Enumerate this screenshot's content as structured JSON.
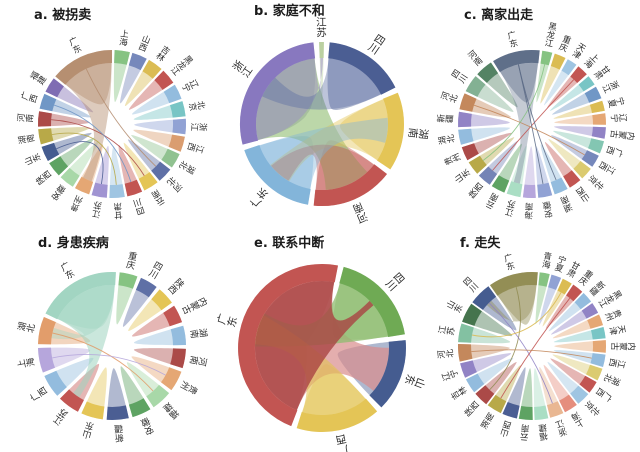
{
  "page": {
    "background": "#ffffff"
  },
  "chart_data": [
    {
      "id": "a",
      "type": "chord",
      "title": "a. 被拐卖",
      "provinces": [
        {
          "name": "上海",
          "color": "#82c17e",
          "value": 12
        },
        {
          "name": "山西",
          "color": "#7284b8",
          "value": 12
        },
        {
          "name": "吉林",
          "color": "#d9b94e",
          "value": 12
        },
        {
          "name": "黑龙江",
          "color": "#c0504d",
          "value": 12
        },
        {
          "name": "辽宁",
          "color": "#8fb9dc",
          "value": 12
        },
        {
          "name": "北京",
          "color": "#74c3c3",
          "value": 12
        },
        {
          "name": "浙江",
          "color": "#8d9fd3",
          "value": 12
        },
        {
          "name": "江西",
          "color": "#d89a6b",
          "value": 12
        },
        {
          "name": "湖北",
          "color": "#8cc08c",
          "value": 12
        },
        {
          "name": "河北",
          "color": "#5a6ba3",
          "value": 12
        },
        {
          "name": "云南",
          "color": "#e3c351",
          "value": 12
        },
        {
          "name": "四川",
          "color": "#c0504d",
          "value": 12
        },
        {
          "name": "甘肃",
          "color": "#9cc3e0",
          "value": 12
        },
        {
          "name": "江苏",
          "color": "#9d90d1",
          "value": 12
        },
        {
          "name": "贵州",
          "color": "#e4a470",
          "value": 12
        },
        {
          "name": "安徽",
          "color": "#a5d6a5",
          "value": 12
        },
        {
          "name": "陕西",
          "color": "#58a05e",
          "value": 12
        },
        {
          "name": "山东",
          "color": "#3f568c",
          "value": 12
        },
        {
          "name": "湖南",
          "color": "#b5a642",
          "value": 12
        },
        {
          "name": "河南",
          "color": "#a94442",
          "value": 12
        },
        {
          "name": "广西",
          "color": "#6b93c4",
          "value": 12
        },
        {
          "name": "福建",
          "color": "#7b68b0",
          "value": 12
        },
        {
          "name": "广东",
          "color": "#b38b6d",
          "value": 50
        }
      ],
      "ribbons": [
        {
          "from": "广东",
          "to": "贵州",
          "color": "#b38b6d",
          "opacity": 0.45,
          "width": 9
        }
      ],
      "chords": [
        {
          "from": "广东",
          "to": "河北",
          "color": "#b38b6d"
        },
        {
          "from": "河南",
          "to": "云南",
          "color": "#a94442"
        },
        {
          "from": "湖南",
          "to": "甘肃",
          "color": "#b5a642"
        },
        {
          "from": "山东",
          "to": "江苏",
          "color": "#46598f"
        },
        {
          "from": "广西",
          "to": "四川",
          "color": "#6b93c4"
        }
      ]
    },
    {
      "id": "b",
      "type": "chord",
      "title": "b. 家庭不和",
      "provinces": [
        {
          "name": "江苏",
          "color": "#b8cf9e",
          "value": 3
        },
        {
          "name": "四川",
          "color": "#46598f",
          "value": 52
        },
        {
          "name": "湖南",
          "color": "#e3c351",
          "value": 50
        },
        {
          "name": "河南",
          "color": "#c0504d",
          "value": 52
        },
        {
          "name": "广东",
          "color": "#7fb2d8",
          "value": 55
        },
        {
          "name": "浙江",
          "color": "#8474bd",
          "value": 88
        }
      ],
      "ribbons": [
        {
          "from": "浙江",
          "to": "河南",
          "color": "#8fbc6f",
          "opacity": 0.6,
          "width": 40
        },
        {
          "from": "浙江",
          "to": "江苏",
          "color": "#9b8ec4",
          "opacity": 0.5,
          "width": 3
        },
        {
          "from": "四川",
          "to": "浙江",
          "color": "#5a6ba3",
          "opacity": 0.4,
          "width": 20
        },
        {
          "from": "湖南",
          "to": "广东",
          "color": "#e3c351",
          "opacity": 0.42,
          "width": 22
        },
        {
          "from": "河南",
          "to": "广东",
          "color": "#c0504d",
          "opacity": 0.42,
          "width": 20
        },
        {
          "from": "广东",
          "to": "湖南",
          "color": "#7fb2d8",
          "opacity": 0.42,
          "width": 22
        }
      ],
      "chords": []
    },
    {
      "id": "c",
      "type": "chord",
      "title": "c. 离家出走",
      "provinces": [
        {
          "name": "黑龙江",
          "color": "#82c17e",
          "value": 8
        },
        {
          "name": "重庆",
          "color": "#d9b94e",
          "value": 9
        },
        {
          "name": "天津",
          "color": "#9cc3e0",
          "value": 8
        },
        {
          "name": "上海",
          "color": "#c0504d",
          "value": 9
        },
        {
          "name": "甘肃",
          "color": "#74c3c3",
          "value": 8
        },
        {
          "name": "浙江",
          "color": "#6b93c4",
          "value": 10
        },
        {
          "name": "宁夏",
          "color": "#d9b94e",
          "value": 8
        },
        {
          "name": "辽宁",
          "color": "#e4a470",
          "value": 9
        },
        {
          "name": "内蒙古",
          "color": "#8d7fc3",
          "value": 9
        },
        {
          "name": "广西",
          "color": "#7fc4af",
          "value": 10
        },
        {
          "name": "江西",
          "color": "#7284b8",
          "value": 10
        },
        {
          "name": "北京",
          "color": "#d9c96b",
          "value": 10
        },
        {
          "name": "山西",
          "color": "#c0504d",
          "value": 10
        },
        {
          "name": "湖南",
          "color": "#8fb9dc",
          "value": 11
        },
        {
          "name": "安徽",
          "color": "#8d9fd3",
          "value": 11
        },
        {
          "name": "海南",
          "color": "#b3a3da",
          "value": 10
        },
        {
          "name": "江苏",
          "color": "#a8dcc2",
          "value": 11
        },
        {
          "name": "云南",
          "color": "#58a05e",
          "value": 11
        },
        {
          "name": "陕西",
          "color": "#7080b3",
          "value": 11
        },
        {
          "name": "山东",
          "color": "#b5a642",
          "value": 11
        },
        {
          "name": "贵州",
          "color": "#a94442",
          "value": 11
        },
        {
          "name": "湖北",
          "color": "#8fb9dc",
          "value": 12
        },
        {
          "name": "新疆",
          "color": "#8d7fc3",
          "value": 12
        },
        {
          "name": "河北",
          "color": "#c28456",
          "value": 13
        },
        {
          "name": "四川",
          "color": "#7fae8f",
          "value": 14
        },
        {
          "name": "河南",
          "color": "#4f7f5f",
          "value": 14
        },
        {
          "name": "广东",
          "color": "#5a6a85",
          "value": 38
        }
      ],
      "ribbons": [
        {
          "from": "广东",
          "to": "江苏",
          "color": "#5a6a85",
          "opacity": 0.35,
          "width": 6
        }
      ],
      "chords": [
        {
          "from": "上海",
          "to": "陕西",
          "color": "#c0504d"
        },
        {
          "from": "广东",
          "to": "湖南",
          "color": "#5a6a85"
        },
        {
          "from": "河北",
          "to": "江西",
          "color": "#c28456"
        },
        {
          "from": "黑龙江",
          "to": "山东",
          "color": "#82c17e"
        },
        {
          "from": "广东",
          "to": "安徽",
          "color": "#5a6a85"
        }
      ]
    },
    {
      "id": "d",
      "type": "chord",
      "title": "d. 身患疾病",
      "provinces": [
        {
          "name": "重庆",
          "color": "#82c17e",
          "value": 13
        },
        {
          "name": "四川",
          "color": "#5a6ba3",
          "value": 13
        },
        {
          "name": "陕西",
          "color": "#e3c351",
          "value": 13
        },
        {
          "name": "内蒙古",
          "color": "#c0504d",
          "value": 13
        },
        {
          "name": "湖南",
          "color": "#8fb9dc",
          "value": 14
        },
        {
          "name": "河南",
          "color": "#a94442",
          "value": 14
        },
        {
          "name": "贵州",
          "color": "#e4a470",
          "value": 15
        },
        {
          "name": "福建",
          "color": "#a5d6a5",
          "value": 15
        },
        {
          "name": "安徽",
          "color": "#58a05e",
          "value": 14
        },
        {
          "name": "新疆",
          "color": "#46598f",
          "value": 16
        },
        {
          "name": "山东",
          "color": "#e3c351",
          "value": 16
        },
        {
          "name": "江苏",
          "color": "#c0504d",
          "value": 16
        },
        {
          "name": "广西",
          "color": "#8fb9dc",
          "value": 17
        },
        {
          "name": "上海",
          "color": "#b3a3da",
          "value": 18
        },
        {
          "name": "湖北",
          "color": "#e09a66",
          "value": 20
        },
        {
          "name": "广东",
          "color": "#9fd4c0",
          "value": 62
        }
      ],
      "ribbons": [
        {
          "from": "广东",
          "to": "江苏",
          "color": "#9fd4c0",
          "opacity": 0.55,
          "width": 7
        },
        {
          "from": "广东",
          "to": "湖北",
          "color": "#9fd4c0",
          "opacity": 0.4,
          "width": 10
        }
      ],
      "chords": [
        {
          "from": "湖北",
          "to": "福建",
          "color": "#e09a66"
        },
        {
          "from": "上海",
          "to": "贵州",
          "color": "#b3a3da"
        }
      ]
    },
    {
      "id": "e",
      "type": "chord",
      "title": "e. 联系中断",
      "provinces": [
        {
          "name": "四川",
          "color": "#6aa84f",
          "value": 65
        },
        {
          "name": "山东",
          "color": "#3f568c",
          "value": 50
        },
        {
          "name": "广西",
          "color": "#e3c351",
          "value": 58
        },
        {
          "name": "广东",
          "color": "#c0504d",
          "value": 168
        }
      ],
      "ribbons": [
        {
          "from": "广东",
          "to": "山东",
          "color": "#d98c8c",
          "opacity": 0.7,
          "width": 40
        },
        {
          "from": "四川",
          "to": "广东",
          "color": "#8fbc6f",
          "opacity": 0.75,
          "width": 30
        },
        {
          "from": "广西",
          "to": "广东",
          "color": "#e3c351",
          "opacity": 0.6,
          "width": 26
        },
        {
          "from": "广东",
          "to": "四川",
          "color": "#a94442",
          "opacity": 0.8,
          "width": 5
        }
      ],
      "chords": []
    },
    {
      "id": "f",
      "type": "chord",
      "title": "f. 走失",
      "provinces": [
        {
          "name": "青海",
          "color": "#82c17e",
          "value": 8
        },
        {
          "name": "宁夏",
          "color": "#8d9fd3",
          "value": 8
        },
        {
          "name": "甘肃",
          "color": "#d9b94e",
          "value": 8
        },
        {
          "name": "重庆",
          "color": "#c0504d",
          "value": 9
        },
        {
          "name": "新疆",
          "color": "#8fb9dc",
          "value": 9
        },
        {
          "name": "黑龙江",
          "color": "#8d7fc3",
          "value": 9
        },
        {
          "name": "贵州",
          "color": "#e4a470",
          "value": 9
        },
        {
          "name": "天津",
          "color": "#74c3c3",
          "value": 9
        },
        {
          "name": "内蒙古",
          "color": "#e4a470",
          "value": 10
        },
        {
          "name": "江西",
          "color": "#8fb9dc",
          "value": 10
        },
        {
          "name": "湖北",
          "color": "#d9c96b",
          "value": 10
        },
        {
          "name": "广西",
          "color": "#c0504d",
          "value": 10
        },
        {
          "name": "北京",
          "color": "#9cc3e0",
          "value": 11
        },
        {
          "name": "上海",
          "color": "#e48a7a",
          "value": 11
        },
        {
          "name": "浙江",
          "color": "#e8b48e",
          "value": 11
        },
        {
          "name": "福建",
          "color": "#a8dcc2",
          "value": 11
        },
        {
          "name": "云南",
          "color": "#58a05e",
          "value": 11
        },
        {
          "name": "山西",
          "color": "#46598f",
          "value": 12
        },
        {
          "name": "湖南",
          "color": "#b5a642",
          "value": 12
        },
        {
          "name": "陕西",
          "color": "#a94442",
          "value": 12
        },
        {
          "name": "吉林",
          "color": "#8fb9dc",
          "value": 12
        },
        {
          "name": "辽宁",
          "color": "#8d7fc3",
          "value": 12
        },
        {
          "name": "河北",
          "color": "#c28456",
          "value": 14
        },
        {
          "name": "江苏",
          "color": "#7fbf9f",
          "value": 15
        },
        {
          "name": "山东",
          "color": "#3f7048",
          "value": 16
        },
        {
          "name": "四川",
          "color": "#3f568c",
          "value": 18
        },
        {
          "name": "广东",
          "color": "#8f8a50",
          "value": 40
        }
      ],
      "ribbons": [
        {
          "from": "广东",
          "to": "四川",
          "color": "#8f8a50",
          "opacity": 0.4,
          "width": 6
        }
      ],
      "chords": [
        {
          "from": "广东",
          "to": "陕西",
          "color": "#8f8a50"
        },
        {
          "from": "四川",
          "to": "浙江",
          "color": "#8d7fc3"
        },
        {
          "from": "重庆",
          "to": "湖南",
          "color": "#c0504d"
        },
        {
          "from": "甘肃",
          "to": "江苏",
          "color": "#d9b94e"
        },
        {
          "from": "河北",
          "to": "江西",
          "color": "#c28456"
        }
      ]
    }
  ]
}
